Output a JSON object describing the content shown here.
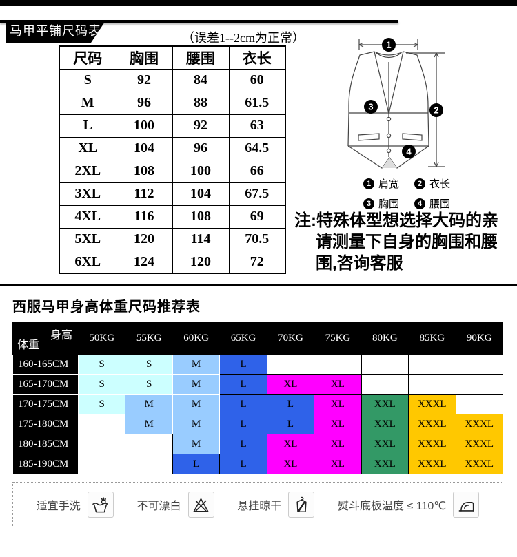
{
  "flat_section": {
    "badge": "马甲平铺尺码表",
    "tolerance_note": "（误差1--2cm为正常）",
    "table": {
      "headers": [
        "尺码",
        "胸围",
        "腰围",
        "衣长"
      ],
      "rows": [
        [
          "S",
          "92",
          "84",
          "60"
        ],
        [
          "M",
          "96",
          "88",
          "61.5"
        ],
        [
          "L",
          "100",
          "92",
          "63"
        ],
        [
          "XL",
          "104",
          "96",
          "64.5"
        ],
        [
          "2XL",
          "108",
          "100",
          "66"
        ],
        [
          "3XL",
          "112",
          "104",
          "67.5"
        ],
        [
          "4XL",
          "116",
          "108",
          "69"
        ],
        [
          "5XL",
          "120",
          "114",
          "70.5"
        ],
        [
          "6XL",
          "124",
          "120",
          "72"
        ]
      ]
    },
    "diagram_legend": [
      {
        "num": "1",
        "label": "肩宽"
      },
      {
        "num": "2",
        "label": "衣长"
      },
      {
        "num": "3",
        "label": "胸围"
      },
      {
        "num": "4",
        "label": "腰围"
      }
    ],
    "note_lines": [
      "注:特殊体型想选择大码的亲",
      "请测量下自身的胸围和腰",
      "围,咨询客服"
    ]
  },
  "recommend_section": {
    "title": "西服马甲身高体重尺码推荐表",
    "corner": {
      "top": "身高",
      "bottom": "体重"
    },
    "weight_headers": [
      "50KG",
      "55KG",
      "60KG",
      "65KG",
      "70KG",
      "75KG",
      "80KG",
      "85KG",
      "90KG"
    ],
    "rows": [
      {
        "height": "160-165CM",
        "cells": [
          "S",
          "S",
          "M",
          "L",
          "",
          "",
          "",
          "",
          ""
        ]
      },
      {
        "height": "165-170CM",
        "cells": [
          "S",
          "S",
          "M",
          "L",
          "XL",
          "XL",
          "",
          "",
          ""
        ]
      },
      {
        "height": "170-175CM",
        "cells": [
          "S",
          "M",
          "M",
          "L",
          "L",
          "XL",
          "XXL",
          "XXXL",
          ""
        ]
      },
      {
        "height": "175-180CM",
        "cells": [
          "",
          "M",
          "M",
          "L",
          "L",
          "XL",
          "XXL",
          "XXXL",
          "XXXL"
        ]
      },
      {
        "height": "180-185CM",
        "cells": [
          "",
          "",
          "M",
          "L",
          "XL",
          "XL",
          "XXL",
          "XXXL",
          "XXXL"
        ]
      },
      {
        "height": "185-190CM",
        "cells": [
          "",
          "",
          "L",
          "L",
          "XL",
          "XL",
          "XXL",
          "XXXL",
          "XXXL"
        ]
      }
    ],
    "size_colors": {
      "S": "#ccffff",
      "M": "#99ccff",
      "L": "#2f62e9",
      "XL": "#ff00ff",
      "XXL": "#339966",
      "XXXL": "#ffc800"
    },
    "light_border_sizes": [
      "S",
      "M"
    ]
  },
  "care_section": {
    "items": [
      {
        "label": "适宜手洗",
        "icon": "hand-wash-icon"
      },
      {
        "label": "不可漂白",
        "icon": "no-bleach-icon"
      },
      {
        "label": "悬挂晾干",
        "icon": "hang-dry-icon"
      },
      {
        "label": "熨斗底板温度 ≤ 110℃",
        "icon": "iron-icon"
      }
    ]
  }
}
